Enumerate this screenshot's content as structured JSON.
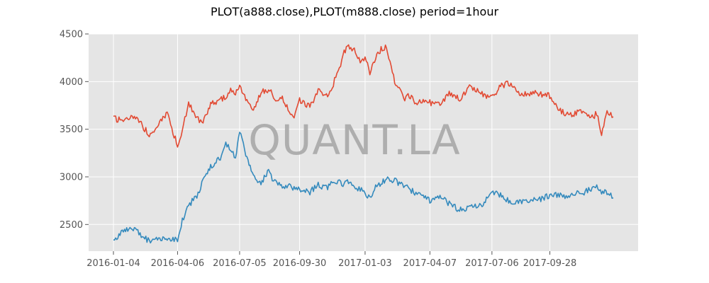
{
  "chart_data": {
    "type": "line",
    "title": "PLOT(a888.close),PLOT(m888.close) period=1hour",
    "watermark": "QUANT.LA",
    "xlabel": "",
    "ylabel": "",
    "x_ticks": [
      "2016-01-04",
      "2016-04-06",
      "2016-07-05",
      "2016-09-30",
      "2017-01-03",
      "2017-04-07",
      "2017-07-06",
      "2017-09-28"
    ],
    "y_ticks": [
      2500,
      3000,
      3500,
      4000,
      4500
    ],
    "ylim": [
      2220,
      4500
    ],
    "grid": true,
    "style": "ggplot",
    "series": [
      {
        "color": "#E24A33",
        "x": [
          "2016-01-04",
          "2016-01-20",
          "2016-02-05",
          "2016-02-25",
          "2016-03-08",
          "2016-03-22",
          "2016-04-06",
          "2016-04-13",
          "2016-04-22",
          "2016-05-04",
          "2016-05-13",
          "2016-05-24",
          "2016-06-07",
          "2016-06-15",
          "2016-06-22",
          "2016-06-29",
          "2016-07-05",
          "2016-07-14",
          "2016-07-25",
          "2016-08-05",
          "2016-08-16",
          "2016-08-25",
          "2016-09-05",
          "2016-09-15",
          "2016-09-22",
          "2016-09-30",
          "2016-10-15",
          "2016-10-27",
          "2016-11-08",
          "2016-11-18",
          "2016-11-25",
          "2016-12-02",
          "2016-12-10",
          "2016-12-20",
          "2016-12-27",
          "2017-01-03",
          "2017-01-10",
          "2017-01-20",
          "2017-02-03",
          "2017-02-15",
          "2017-02-28",
          "2017-03-08",
          "2017-03-16",
          "2017-03-25",
          "2017-04-07",
          "2017-04-20",
          "2017-05-05",
          "2017-05-20",
          "2017-06-05",
          "2017-06-20",
          "2017-07-06",
          "2017-07-20",
          "2017-08-01",
          "2017-08-15",
          "2017-08-28",
          "2017-09-10",
          "2017-09-28",
          "2017-10-10",
          "2017-10-25",
          "2017-11-10",
          "2017-11-25",
          "2017-12-05",
          "2017-12-12",
          "2017-12-20",
          "2017-12-29"
        ],
        "values": [
          3610,
          3600,
          3620,
          3450,
          3540,
          3660,
          3330,
          3500,
          3780,
          3620,
          3560,
          3780,
          3800,
          3850,
          3920,
          3850,
          3980,
          3800,
          3700,
          3880,
          3920,
          3820,
          3820,
          3700,
          3650,
          3800,
          3740,
          3900,
          3850,
          3980,
          4100,
          4280,
          4380,
          4320,
          4200,
          4260,
          4100,
          4300,
          4380,
          4000,
          3820,
          3860,
          3780,
          3790,
          3780,
          3750,
          3880,
          3820,
          3950,
          3870,
          3840,
          3960,
          3980,
          3880,
          3860,
          3880,
          3850,
          3700,
          3650,
          3680,
          3620,
          3660,
          3450,
          3680,
          3630
        ]
      },
      {
        "color": "#348ABD",
        "x": [
          "2016-01-04",
          "2016-01-20",
          "2016-02-05",
          "2016-02-25",
          "2016-03-08",
          "2016-03-22",
          "2016-04-06",
          "2016-04-13",
          "2016-04-22",
          "2016-05-04",
          "2016-05-13",
          "2016-05-24",
          "2016-06-07",
          "2016-06-15",
          "2016-06-22",
          "2016-06-29",
          "2016-07-05",
          "2016-07-14",
          "2016-07-25",
          "2016-08-05",
          "2016-08-16",
          "2016-08-25",
          "2016-09-05",
          "2016-09-15",
          "2016-09-22",
          "2016-09-30",
          "2016-10-15",
          "2016-10-27",
          "2016-11-08",
          "2016-11-18",
          "2016-11-25",
          "2016-12-02",
          "2016-12-10",
          "2016-12-20",
          "2016-12-27",
          "2017-01-03",
          "2017-01-10",
          "2017-01-20",
          "2017-02-03",
          "2017-02-15",
          "2017-02-28",
          "2017-03-08",
          "2017-03-16",
          "2017-03-25",
          "2017-04-07",
          "2017-04-20",
          "2017-05-05",
          "2017-05-20",
          "2017-06-05",
          "2017-06-20",
          "2017-07-06",
          "2017-07-20",
          "2017-08-01",
          "2017-08-15",
          "2017-08-28",
          "2017-09-10",
          "2017-09-28",
          "2017-10-10",
          "2017-10-25",
          "2017-11-10",
          "2017-11-25",
          "2017-12-05",
          "2017-12-12",
          "2017-12-20",
          "2017-12-29"
        ],
        "values": [
          2330,
          2440,
          2450,
          2320,
          2340,
          2350,
          2350,
          2550,
          2700,
          2800,
          2950,
          3100,
          3200,
          3340,
          3280,
          3200,
          3480,
          3250,
          3000,
          2950,
          3050,
          2950,
          2900,
          2920,
          2880,
          2860,
          2840,
          2920,
          2880,
          2960,
          2950,
          2920,
          2960,
          2900,
          2870,
          2820,
          2800,
          2900,
          2970,
          2960,
          2900,
          2880,
          2830,
          2800,
          2750,
          2790,
          2720,
          2650,
          2680,
          2690,
          2840,
          2800,
          2740,
          2730,
          2740,
          2760,
          2800,
          2810,
          2800,
          2830,
          2860,
          2900,
          2850,
          2830,
          2780
        ]
      }
    ]
  }
}
